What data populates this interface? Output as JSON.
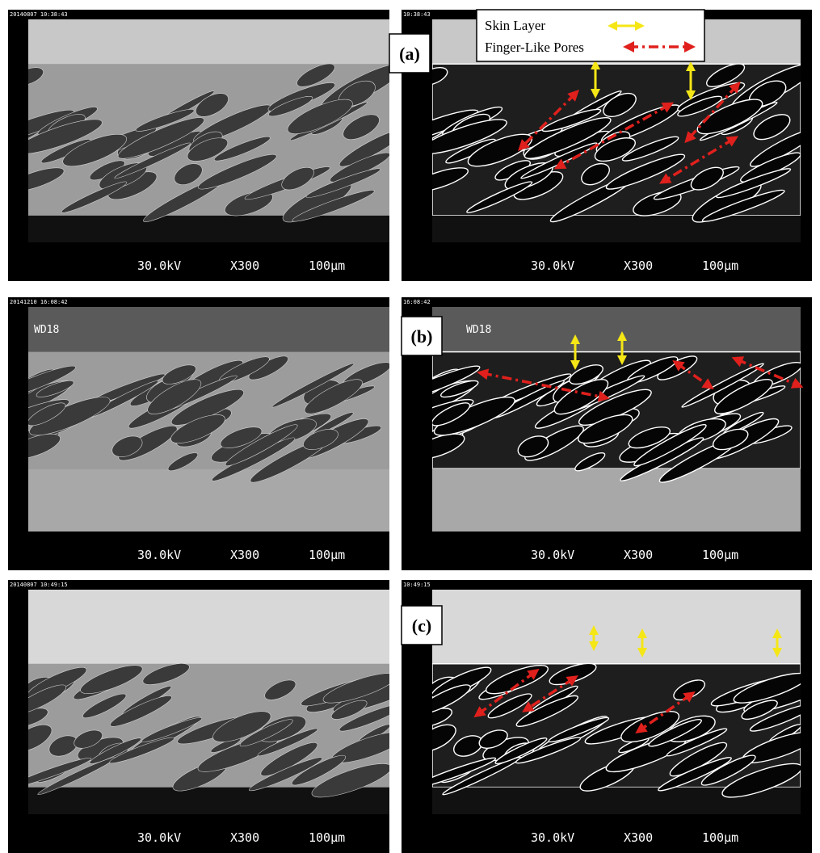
{
  "panels": [
    {
      "label": "(a)",
      "left": {
        "timestamp": "20140807 10:38:43",
        "voltage": "30.0kV",
        "magnification": "X300",
        "scale": "100µm"
      },
      "right": {
        "timestamp": "10:38:43",
        "voltage": "30.0kV",
        "magnification": "X300",
        "scale": "100µm"
      }
    },
    {
      "label": "(b)",
      "left": {
        "timestamp": "20141210 16:08:42",
        "working_distance": "WD18",
        "voltage": "30.0kV",
        "magnification": "X300",
        "scale": "100µm"
      },
      "right": {
        "timestamp": "16:08:42",
        "working_distance": "WD18",
        "voltage": "30.0kV",
        "magnification": "X300",
        "scale": "100µm"
      }
    },
    {
      "label": "(c)",
      "left": {
        "timestamp": "20140807 10:49:15",
        "voltage": "30.0kV",
        "magnification": "X300",
        "scale": "100µm"
      },
      "right": {
        "timestamp": "10:49:15",
        "voltage": "30.0kV",
        "magnification": "X300",
        "scale": "100µm"
      }
    }
  ],
  "legend": {
    "skin_layer": "Skin Layer",
    "finger_like_pores": "Finger-Like Pores"
  }
}
